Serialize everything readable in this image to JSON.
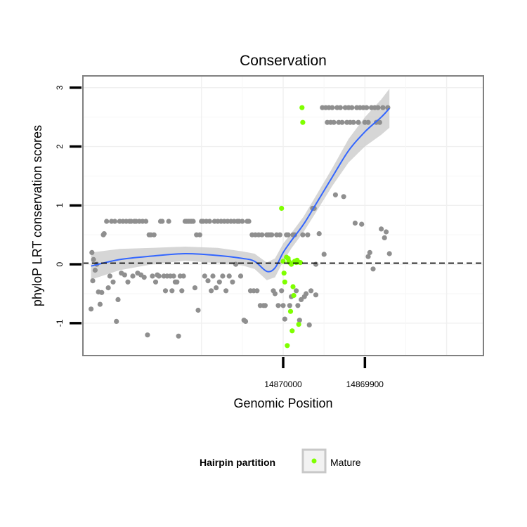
{
  "chart_data": {
    "type": "scatter",
    "title": "Conservation",
    "xlabel": "Genomic Position",
    "ylabel": "phyloP LRT conservation scores",
    "x_reversed": true,
    "xlim": [
      14870245,
      14869755
    ],
    "ylim": [
      -1.55,
      3.2
    ],
    "x_ticks": [
      14870000,
      14869900
    ],
    "x_tick_labels": [
      "14870000",
      "14869900"
    ],
    "y_ticks": [
      -1,
      0,
      1,
      2,
      3
    ],
    "y_tick_labels": [
      "-1",
      "0",
      "1",
      "2",
      "3"
    ],
    "reference_line_y": 0.02,
    "grid": true,
    "legend_position": "bottom",
    "legend": {
      "title": "Hairpin partition",
      "entries": [
        "Mature"
      ]
    },
    "colors": {
      "background_points": "#8f8f8f",
      "mature_points": "#7fff00",
      "smooth_line": "#3366ff",
      "confidence_band": "#cccccc"
    },
    "series": [
      {
        "name": "",
        "color": "#8f8f8f",
        "points": [
          [
            14870235,
            -0.76
          ],
          [
            14870234,
            0.2
          ],
          [
            14870233,
            -0.28
          ],
          [
            14870232,
            0.08
          ],
          [
            14870230,
            -0.1
          ],
          [
            14870228,
            0.0
          ],
          [
            14870226,
            -0.47
          ],
          [
            14870224,
            -0.68
          ],
          [
            14870222,
            -0.48
          ],
          [
            14870220,
            0.5
          ],
          [
            14870219,
            0.52
          ],
          [
            14870216,
            0.73
          ],
          [
            14870214,
            -0.4
          ],
          [
            14870212,
            -0.2
          ],
          [
            14870210,
            0.73
          ],
          [
            14870208,
            -0.3
          ],
          [
            14870206,
            0.73
          ],
          [
            14870204,
            -0.97
          ],
          [
            14870202,
            -0.6
          ],
          [
            14870200,
            0.73
          ],
          [
            14870198,
            -0.15
          ],
          [
            14870196,
            0.73
          ],
          [
            14870194,
            -0.18
          ],
          [
            14870192,
            0.73
          ],
          [
            14870190,
            -0.3
          ],
          [
            14870188,
            0.73
          ],
          [
            14870186,
            0.73
          ],
          [
            14870184,
            -0.2
          ],
          [
            14870182,
            0.73
          ],
          [
            14870180,
            0.73
          ],
          [
            14870178,
            -0.15
          ],
          [
            14870176,
            0.73
          ],
          [
            14870174,
            -0.18
          ],
          [
            14870172,
            0.73
          ],
          [
            14870170,
            -0.22
          ],
          [
            14870168,
            0.73
          ],
          [
            14870166,
            -1.2
          ],
          [
            14870164,
            0.5
          ],
          [
            14870162,
            0.5
          ],
          [
            14870160,
            -0.2
          ],
          [
            14870158,
            0.5
          ],
          [
            14870156,
            -0.3
          ],
          [
            14870154,
            -0.18
          ],
          [
            14870152,
            -0.2
          ],
          [
            14870150,
            0.73
          ],
          [
            14870148,
            0.73
          ],
          [
            14870146,
            -0.2
          ],
          [
            14870144,
            -0.45
          ],
          [
            14870142,
            -0.2
          ],
          [
            14870140,
            0.73
          ],
          [
            14870138,
            -0.2
          ],
          [
            14870136,
            -0.45
          ],
          [
            14870134,
            -0.2
          ],
          [
            14870132,
            -0.3
          ],
          [
            14870130,
            -0.3
          ],
          [
            14870128,
            -1.22
          ],
          [
            14870126,
            -0.2
          ],
          [
            14870124,
            -0.45
          ],
          [
            14870122,
            -0.2
          ],
          [
            14870120,
            0.73
          ],
          [
            14870118,
            0.73
          ],
          [
            14870116,
            0.73
          ],
          [
            14870114,
            0.73
          ],
          [
            14870112,
            0.73
          ],
          [
            14870110,
            0.73
          ],
          [
            14870108,
            -0.4
          ],
          [
            14870106,
            0.5
          ],
          [
            14870104,
            -0.78
          ],
          [
            14870102,
            0.5
          ],
          [
            14870100,
            0.73
          ],
          [
            14870098,
            0.73
          ],
          [
            14870096,
            -0.2
          ],
          [
            14870094,
            0.73
          ],
          [
            14870092,
            -0.28
          ],
          [
            14870090,
            0.73
          ],
          [
            14870088,
            -0.45
          ],
          [
            14870086,
            -0.2
          ],
          [
            14870084,
            0.73
          ],
          [
            14870082,
            -0.4
          ],
          [
            14870080,
            0.73
          ],
          [
            14870078,
            -0.3
          ],
          [
            14870076,
            0.73
          ],
          [
            14870074,
            -0.2
          ],
          [
            14870072,
            0.73
          ],
          [
            14870070,
            -0.45
          ],
          [
            14870068,
            0.73
          ],
          [
            14870066,
            -0.2
          ],
          [
            14870064,
            0.73
          ],
          [
            14870062,
            -0.3
          ],
          [
            14870060,
            0.73
          ],
          [
            14870058,
            0.0
          ],
          [
            14870056,
            0.73
          ],
          [
            14870054,
            0.73
          ],
          [
            14870052,
            -0.2
          ],
          [
            14870050,
            0.73
          ],
          [
            14870048,
            -0.95
          ],
          [
            14870046,
            -0.97
          ],
          [
            14870044,
            0.73
          ],
          [
            14870042,
            0.73
          ],
          [
            14870040,
            -0.45
          ],
          [
            14870038,
            0.5
          ],
          [
            14870036,
            -0.45
          ],
          [
            14870034,
            0.5
          ],
          [
            14870032,
            -0.45
          ],
          [
            14870030,
            0.5
          ],
          [
            14870028,
            -0.7
          ],
          [
            14870026,
            0.5
          ],
          [
            14870024,
            -0.7
          ],
          [
            14870022,
            -0.7
          ],
          [
            14870020,
            0.5
          ],
          [
            14870018,
            0.5
          ],
          [
            14870016,
            0.5
          ],
          [
            14870014,
            0.5
          ],
          [
            14870012,
            -0.45
          ],
          [
            14870010,
            -0.5
          ],
          [
            14870008,
            0.5
          ],
          [
            14870006,
            -0.7
          ],
          [
            14870004,
            0.5
          ],
          [
            14870002,
            -0.45
          ],
          [
            14870000,
            -0.7
          ],
          [
            14869998,
            -0.93
          ],
          [
            14869996,
            0.5
          ],
          [
            14869994,
            0.5
          ],
          [
            14869992,
            -0.7
          ],
          [
            14869990,
            -0.55
          ],
          [
            14869988,
            0.5
          ],
          [
            14869986,
            0.5
          ],
          [
            14869984,
            -0.45
          ],
          [
            14869982,
            -0.7
          ],
          [
            14869980,
            -0.95
          ],
          [
            14869978,
            -0.6
          ],
          [
            14869976,
            0.5
          ],
          [
            14869974,
            -0.55
          ],
          [
            14869972,
            -0.5
          ],
          [
            14869970,
            0.5
          ],
          [
            14869968,
            -1.03
          ],
          [
            14869966,
            -0.45
          ],
          [
            14869964,
            0.95
          ],
          [
            14869962,
            0.95
          ],
          [
            14869960,
            -0.52
          ],
          [
            14869952,
            2.66
          ],
          [
            14869948,
            2.66
          ],
          [
            14869946,
            2.41
          ],
          [
            14869944,
            2.66
          ],
          [
            14869942,
            2.41
          ],
          [
            14869940,
            2.66
          ],
          [
            14869938,
            2.41
          ],
          [
            14869936,
            1.18
          ],
          [
            14869934,
            2.66
          ],
          [
            14869932,
            2.41
          ],
          [
            14869930,
            2.66
          ],
          [
            14869928,
            2.41
          ],
          [
            14869926,
            1.15
          ],
          [
            14869924,
            2.66
          ],
          [
            14869922,
            2.41
          ],
          [
            14869920,
            2.66
          ],
          [
            14869918,
            2.41
          ],
          [
            14869916,
            2.66
          ],
          [
            14869914,
            2.41
          ],
          [
            14869912,
            0.7
          ],
          [
            14869910,
            2.66
          ],
          [
            14869908,
            2.41
          ],
          [
            14869906,
            2.66
          ],
          [
            14869904,
            0.68
          ],
          [
            14869902,
            2.66
          ],
          [
            14869900,
            2.41
          ],
          [
            14869898,
            2.66
          ],
          [
            14869896,
            2.41
          ],
          [
            14869894,
            0.2
          ],
          [
            14869892,
            2.66
          ],
          [
            14869890,
            -0.08
          ],
          [
            14869888,
            2.66
          ],
          [
            14869886,
            2.41
          ],
          [
            14869884,
            2.66
          ],
          [
            14869882,
            2.41
          ],
          [
            14869880,
            0.6
          ],
          [
            14869878,
            2.66
          ],
          [
            14869876,
            0.45
          ],
          [
            14869874,
            0.55
          ],
          [
            14869872,
            2.66
          ],
          [
            14869870,
            0.18
          ],
          [
            14869956,
            0.52
          ],
          [
            14869950,
            0.17
          ],
          [
            14869896,
            0.13
          ],
          [
            14869960,
            0.0
          ]
        ]
      },
      {
        "name": "Mature",
        "color": "#7fff00",
        "points": [
          [
            14870002,
            0.95
          ],
          [
            14870000,
            0.05
          ],
          [
            14869999,
            -0.15
          ],
          [
            14869998,
            -0.3
          ],
          [
            14869996,
            0.12
          ],
          [
            14869995,
            -1.38
          ],
          [
            14869994,
            0.1
          ],
          [
            14869993,
            0.05
          ],
          [
            14869992,
            0.03
          ],
          [
            14869991,
            -0.8
          ],
          [
            14869990,
            0.0
          ],
          [
            14869989,
            -1.13
          ],
          [
            14869988,
            -0.38
          ],
          [
            14869987,
            -0.53
          ],
          [
            14869986,
            0.05
          ],
          [
            14869985,
            0.05
          ],
          [
            14869984,
            0.03
          ],
          [
            14869983,
            0.07
          ],
          [
            14869982,
            0.04
          ],
          [
            14869981,
            -1.02
          ],
          [
            14869979,
            0.03
          ],
          [
            14869977,
            2.66
          ],
          [
            14869976,
            2.41
          ]
        ]
      }
    ],
    "smooth_line": {
      "x": [
        14870235,
        14870200,
        14870160,
        14870120,
        14870080,
        14870050,
        14870035,
        14870020,
        14870010,
        14870000,
        14869990,
        14869975,
        14869960,
        14869940,
        14869920,
        14869900,
        14869880,
        14869870
      ],
      "y": [
        -0.03,
        0.08,
        0.14,
        0.18,
        0.15,
        0.1,
        0.05,
        -0.12,
        -0.06,
        0.2,
        0.4,
        0.68,
        1.02,
        1.48,
        1.93,
        2.25,
        2.5,
        2.65
      ]
    },
    "confidence_band": {
      "x": [
        14870235,
        14870200,
        14870160,
        14870120,
        14870080,
        14870050,
        14870035,
        14870020,
        14870010,
        14870000,
        14869990,
        14869975,
        14869960,
        14869940,
        14869920,
        14869900,
        14869880,
        14869870
      ],
      "lower": [
        -0.26,
        -0.1,
        0.0,
        0.06,
        0.02,
        -0.02,
        -0.08,
        -0.27,
        -0.22,
        0.05,
        0.27,
        0.55,
        0.88,
        1.33,
        1.73,
        2.0,
        2.2,
        2.32
      ],
      "upper": [
        0.2,
        0.26,
        0.28,
        0.3,
        0.28,
        0.22,
        0.18,
        0.03,
        0.1,
        0.35,
        0.53,
        0.81,
        1.16,
        1.63,
        2.13,
        2.5,
        2.8,
        2.98
      ]
    }
  }
}
